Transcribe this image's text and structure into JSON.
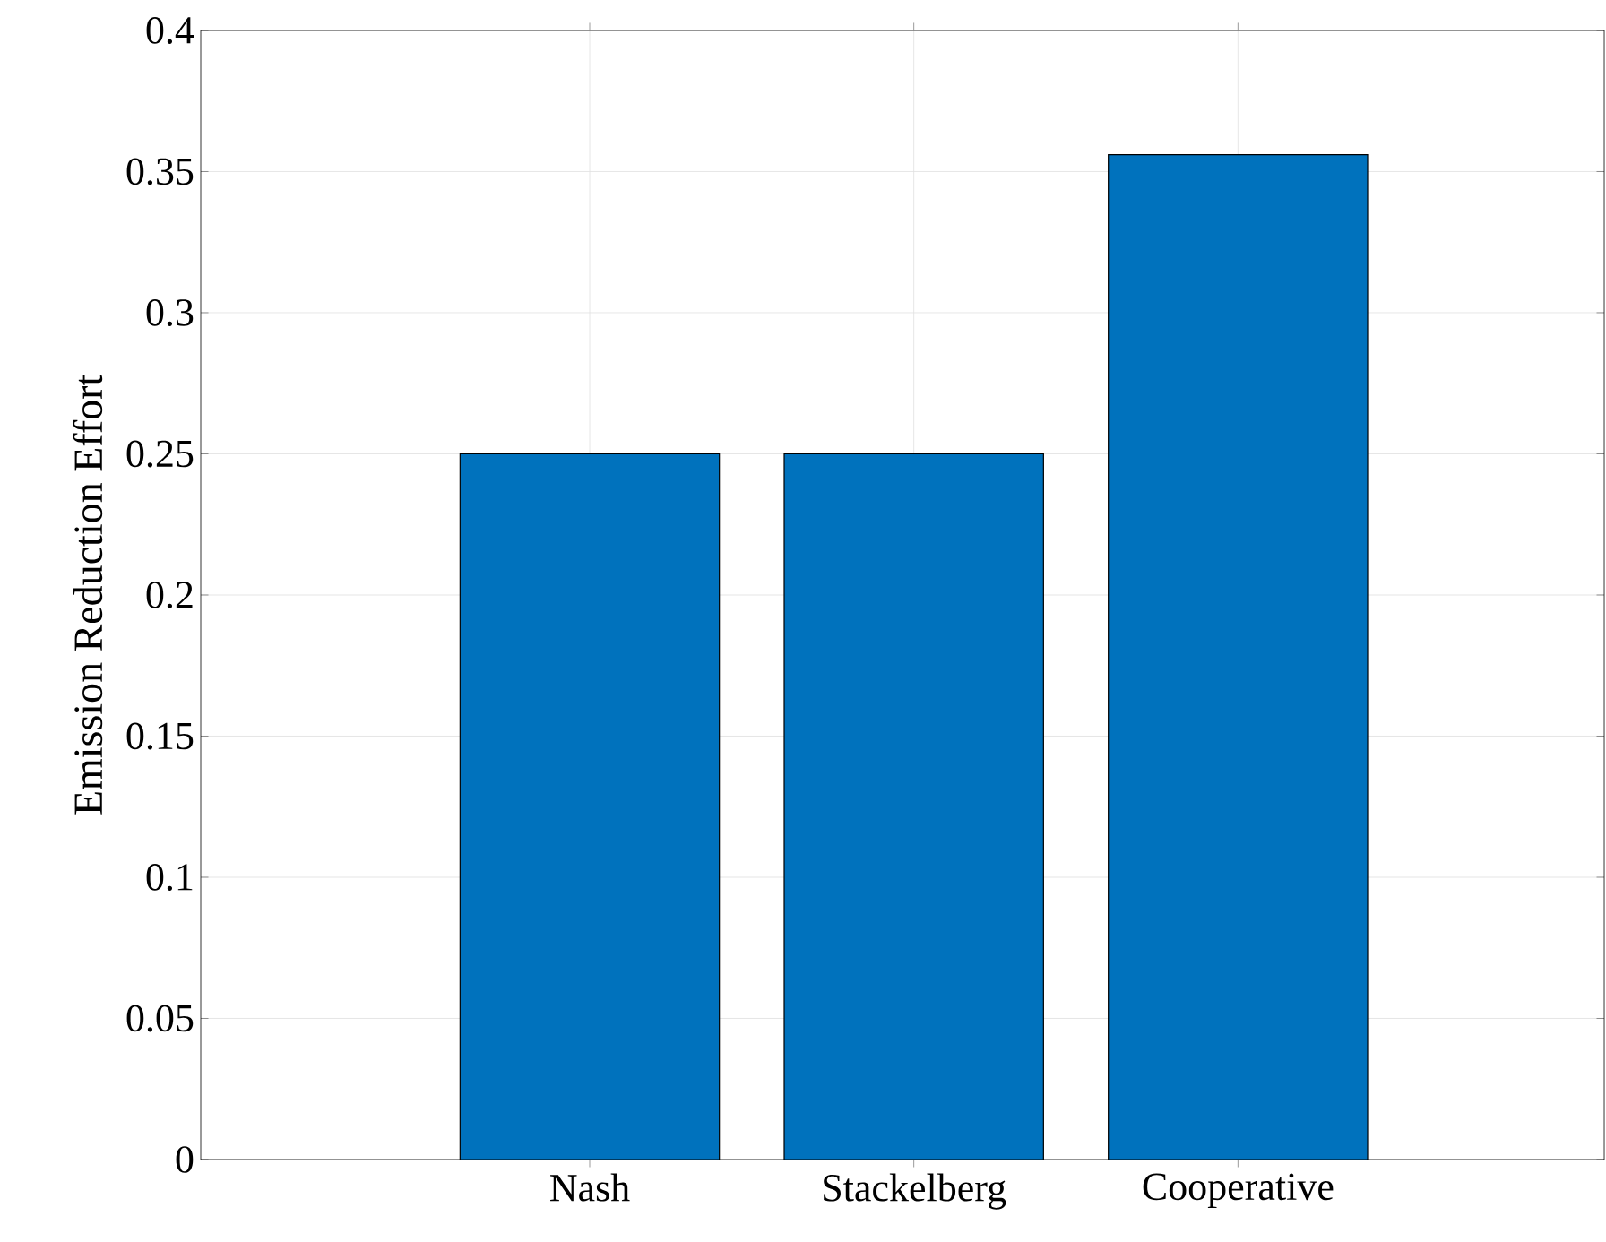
{
  "chart_data": {
    "type": "bar",
    "ylabel": "Emission Reduction Effort",
    "categories": [
      "Nash",
      "Stackelberg",
      "Cooperative"
    ],
    "values": [
      0.25,
      0.25,
      0.356
    ],
    "color": "#0072bd",
    "ylim": [
      0,
      0.4
    ],
    "yticks": [
      0,
      0.05,
      0.1,
      0.15,
      0.2,
      0.25,
      0.3,
      0.35,
      0.4
    ],
    "grid": true
  }
}
